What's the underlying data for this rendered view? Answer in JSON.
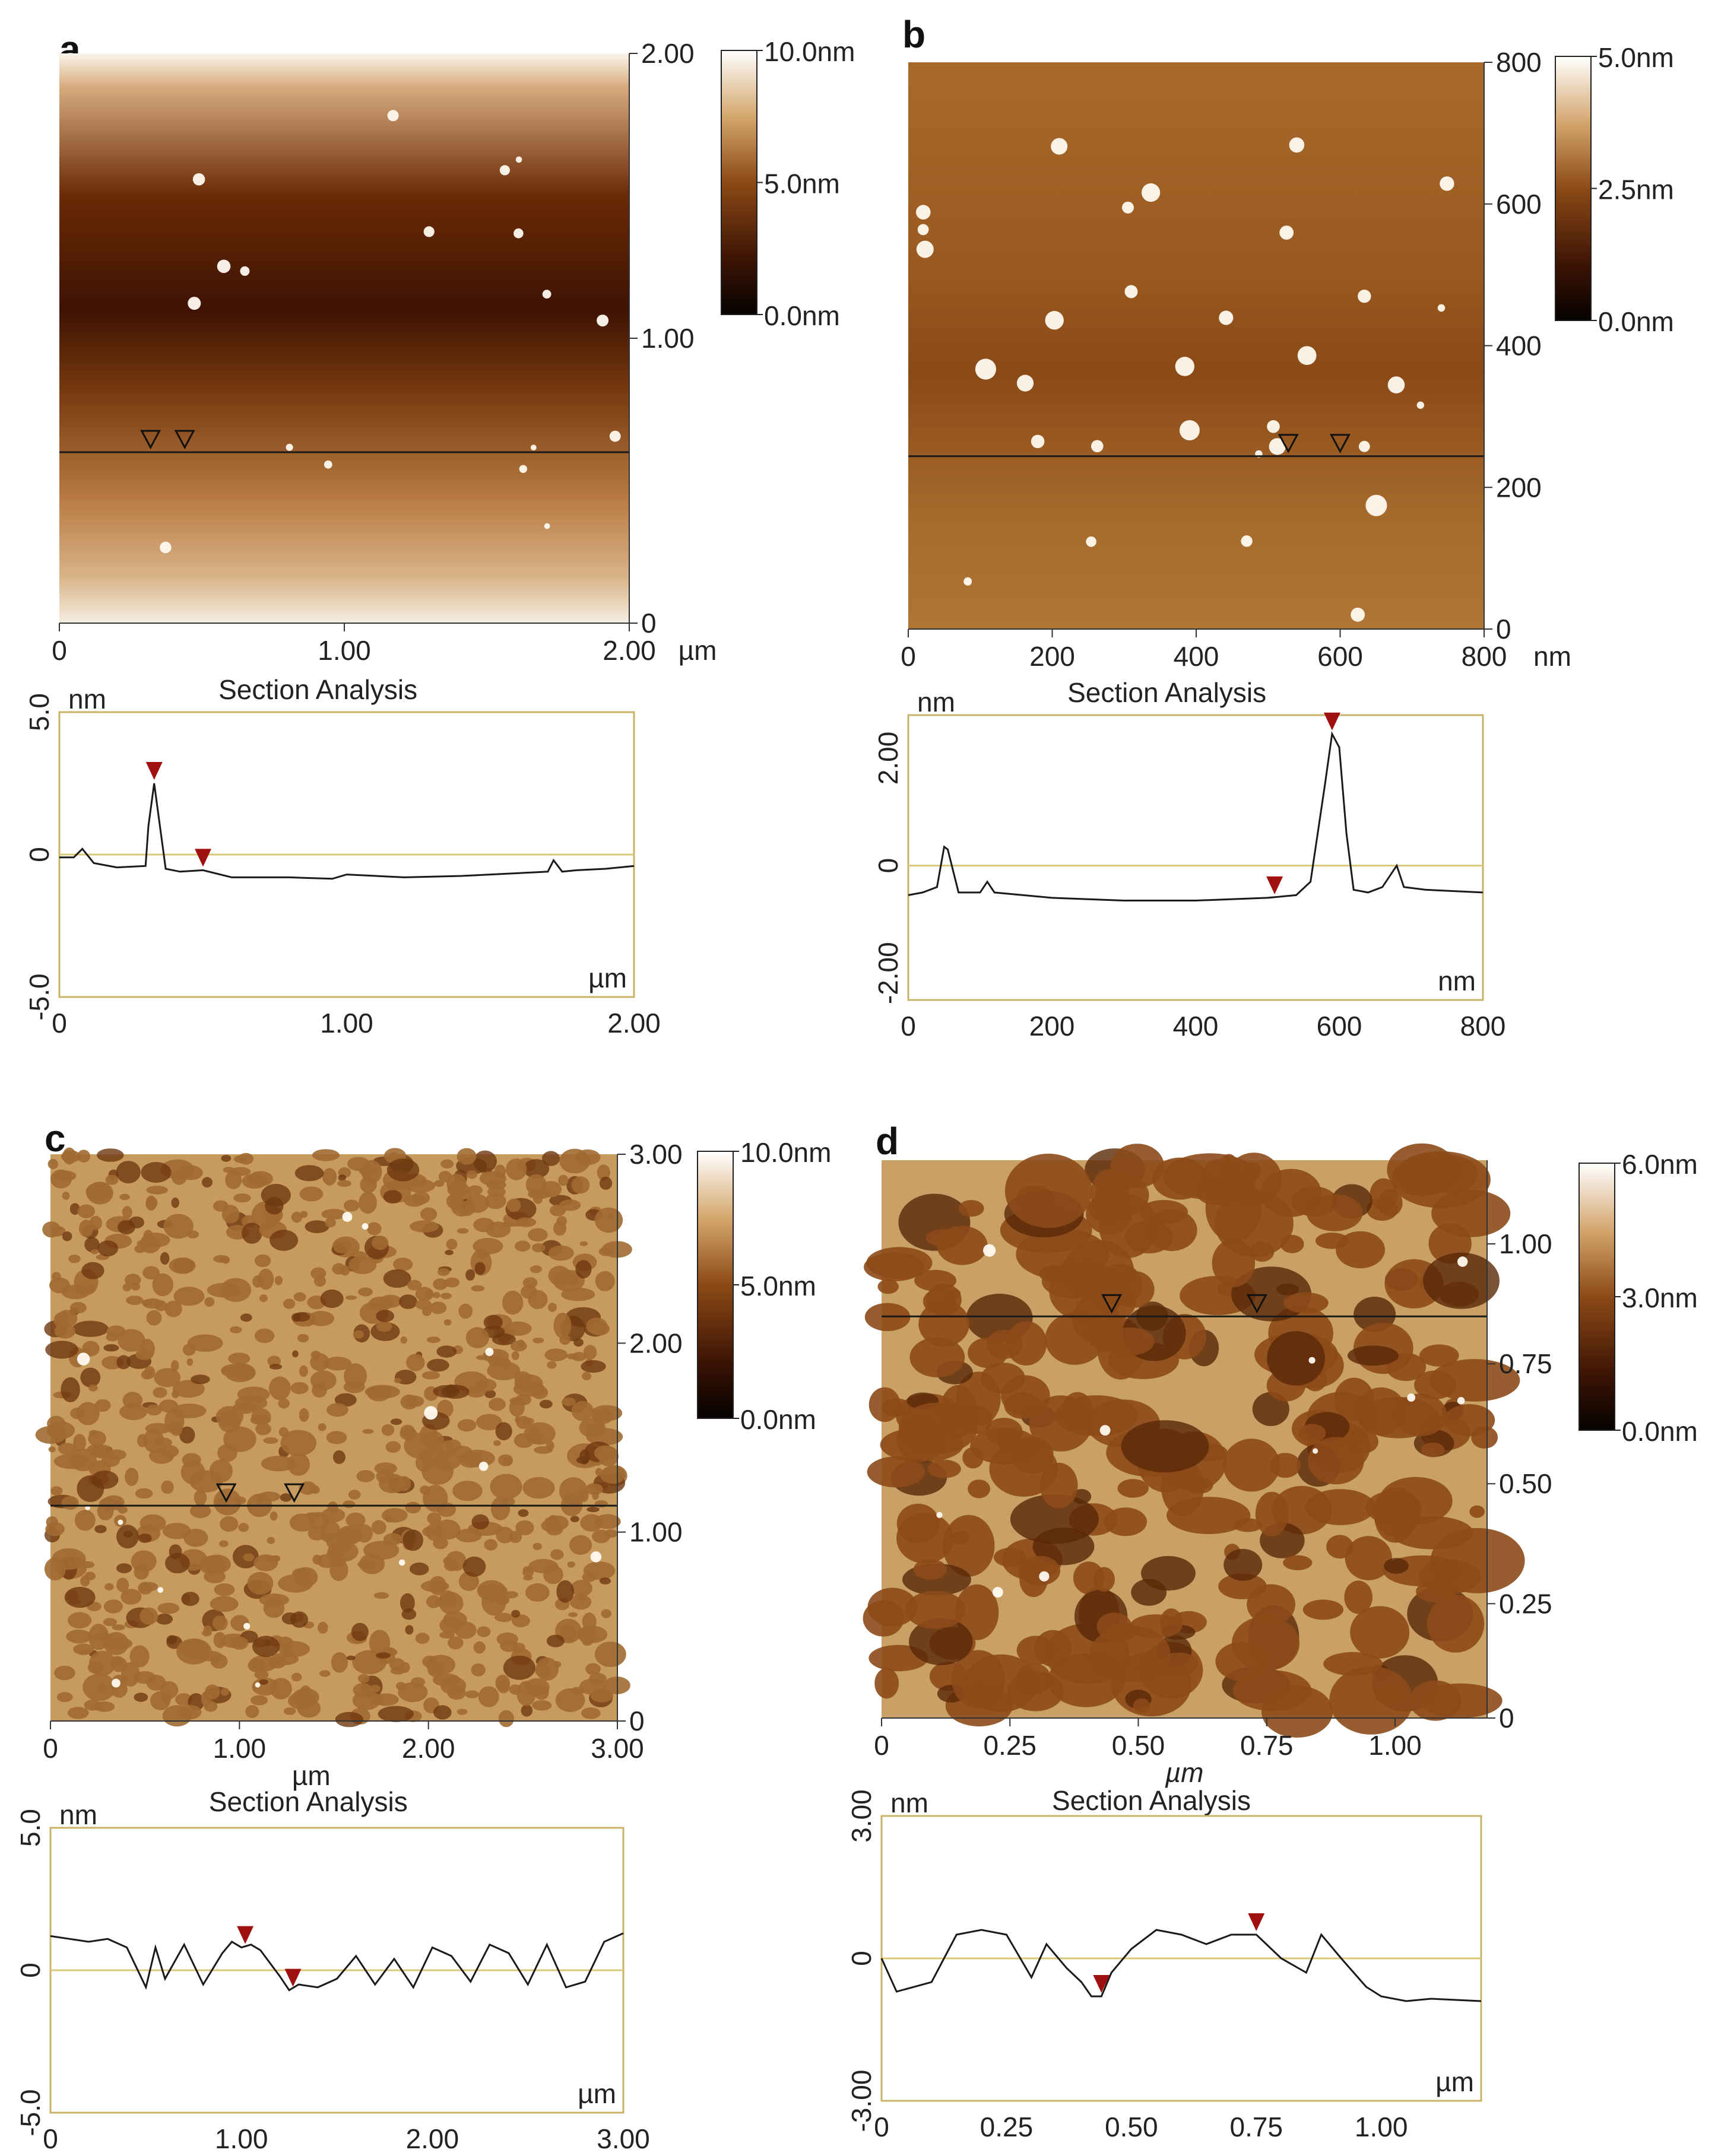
{
  "panels": [
    {
      "letter": "a",
      "image": {
        "type": "afm_height_map",
        "x_ticks": [
          "0",
          "1.00",
          "2.00"
        ],
        "x_unit": "µm",
        "y_ticks": [
          "2.00",
          "1.00",
          "0"
        ],
        "colorbar": {
          "labels": [
            "10.0nm",
            "5.0nm",
            "0.0nm"
          ]
        },
        "section_markers": 2,
        "palette": {
          "dark": "#3a0f02",
          "mid": "#9a5518",
          "light": "#fbf5ea"
        }
      },
      "section": {
        "title": "Section Analysis",
        "y_unit": "nm",
        "x_unit": "µm",
        "y_ticks": [
          "5.0",
          "0",
          "-5.0"
        ],
        "x_ticks": [
          "0",
          "1.00",
          "2.00"
        ]
      }
    },
    {
      "letter": "b",
      "image": {
        "type": "afm_height_map",
        "x_ticks": [
          "0",
          "200",
          "400",
          "600",
          "800"
        ],
        "x_unit": "nm",
        "y_ticks": [
          "800",
          "600",
          "400",
          "200",
          "0"
        ],
        "colorbar": {
          "labels": [
            "5.0nm",
            "2.5nm",
            "0.0nm"
          ]
        },
        "section_markers": 2,
        "palette": {
          "dark": "#5a2a08",
          "mid": "#a86a2c",
          "light": "#ffffff"
        }
      },
      "section": {
        "title": "Section Analysis",
        "y_unit": "nm",
        "x_unit": "nm",
        "y_ticks": [
          "2.00",
          "0",
          "-2.00"
        ],
        "x_ticks": [
          "0",
          "200",
          "400",
          "600",
          "800"
        ]
      }
    },
    {
      "letter": "c",
      "image": {
        "type": "afm_height_map",
        "x_ticks": [
          "0",
          "1.00",
          "2.00",
          "3.00"
        ],
        "x_unit": "µm",
        "y_ticks": [
          "3.00",
          "2.00",
          "1.00",
          "0"
        ],
        "colorbar": {
          "labels": [
            "10.0nm",
            "5.0nm",
            "0.0nm"
          ]
        },
        "section_markers": 2,
        "palette": {
          "dark": "#6e3810",
          "mid": "#a06a32",
          "light": "#c79a5e"
        }
      },
      "section": {
        "title": "Section Analysis",
        "y_unit": "nm",
        "x_unit": "µm",
        "y_ticks": [
          "5.0",
          "0",
          "-5.0"
        ],
        "x_ticks": [
          "0",
          "1.00",
          "2.00",
          "3.00"
        ]
      }
    },
    {
      "letter": "d",
      "image": {
        "type": "afm_height_map",
        "x_ticks": [
          "0",
          "0.25",
          "0.50",
          "0.75",
          "1.00"
        ],
        "x_unit": "µm",
        "y_ticks": [
          "1.00",
          "0.75",
          "0.50",
          "0.25",
          "0"
        ],
        "colorbar": {
          "labels": [
            "6.0nm",
            "3.0nm",
            "0.0nm"
          ]
        },
        "section_markers": 2,
        "palette": {
          "dark": "#5a2808",
          "mid": "#8c4a18",
          "light": "#c9a066"
        }
      },
      "section": {
        "title": "Section Analysis",
        "y_unit": "nm",
        "x_unit": "µm",
        "y_ticks": [
          "3.00",
          "0",
          "-3.00"
        ],
        "x_ticks": [
          "0",
          "0.25",
          "0.50",
          "0.75",
          "1.00"
        ]
      }
    }
  ],
  "chart_data": [
    {
      "type": "line",
      "panel": "a",
      "title": "Section Analysis",
      "xlabel": "µm",
      "ylabel": "nm",
      "xlim": [
        0,
        2.0
      ],
      "ylim": [
        -5,
        5
      ],
      "x": [
        0,
        0.05,
        0.08,
        0.12,
        0.2,
        0.3,
        0.31,
        0.33,
        0.35,
        0.37,
        0.42,
        0.5,
        0.6,
        0.8,
        0.95,
        1.0,
        1.2,
        1.4,
        1.6,
        1.7,
        1.72,
        1.75,
        1.8,
        1.9,
        2.0
      ],
      "y": [
        -0.1,
        -0.1,
        0.2,
        -0.3,
        -0.45,
        -0.4,
        1.0,
        2.5,
        1.0,
        -0.5,
        -0.6,
        -0.55,
        -0.8,
        -0.8,
        -0.85,
        -0.7,
        -0.8,
        -0.75,
        -0.65,
        -0.6,
        -0.2,
        -0.6,
        -0.55,
        -0.5,
        -0.4
      ]
    },
    {
      "type": "line",
      "panel": "b",
      "title": "Section Analysis",
      "xlabel": "nm",
      "ylabel": "nm",
      "xlim": [
        0,
        800
      ],
      "ylim": [
        -2.5,
        2.8
      ],
      "x": [
        0,
        20,
        40,
        50,
        55,
        70,
        100,
        110,
        120,
        200,
        300,
        400,
        500,
        540,
        560,
        580,
        590,
        600,
        610,
        620,
        640,
        660,
        680,
        690,
        720,
        800
      ],
      "y": [
        -0.55,
        -0.5,
        -0.4,
        0.35,
        0.3,
        -0.5,
        -0.5,
        -0.3,
        -0.5,
        -0.6,
        -0.65,
        -0.65,
        -0.6,
        -0.55,
        -0.3,
        1.5,
        2.45,
        2.2,
        0.6,
        -0.45,
        -0.5,
        -0.4,
        0.0,
        -0.4,
        -0.45,
        -0.5
      ]
    },
    {
      "type": "line",
      "panel": "c",
      "title": "Section Analysis",
      "xlabel": "µm",
      "ylabel": "nm",
      "xlim": [
        0,
        3.0
      ],
      "ylim": [
        -5,
        5
      ],
      "x": [
        0,
        0.1,
        0.2,
        0.3,
        0.4,
        0.5,
        0.55,
        0.6,
        0.7,
        0.8,
        0.9,
        0.95,
        1.0,
        1.05,
        1.1,
        1.2,
        1.25,
        1.3,
        1.4,
        1.5,
        1.6,
        1.7,
        1.8,
        1.9,
        2.0,
        2.1,
        2.2,
        2.3,
        2.4,
        2.5,
        2.6,
        2.7,
        2.8,
        2.9,
        3.0
      ],
      "y": [
        1.2,
        1.1,
        1.0,
        1.1,
        0.8,
        -0.6,
        0.8,
        -0.3,
        0.9,
        -0.5,
        0.6,
        1.0,
        0.8,
        0.9,
        0.7,
        -0.2,
        -0.7,
        -0.5,
        -0.6,
        -0.3,
        0.5,
        -0.5,
        0.4,
        -0.6,
        0.8,
        0.5,
        -0.4,
        0.9,
        0.6,
        -0.5,
        0.9,
        -0.6,
        -0.4,
        1.0,
        1.3
      ]
    },
    {
      "type": "line",
      "panel": "d",
      "title": "Section Analysis",
      "xlabel": "µm",
      "ylabel": "nm",
      "xlim": [
        0,
        1.2
      ],
      "ylim": [
        -3,
        3
      ],
      "x": [
        0,
        0.03,
        0.1,
        0.15,
        0.2,
        0.25,
        0.3,
        0.33,
        0.37,
        0.4,
        0.42,
        0.44,
        0.46,
        0.5,
        0.55,
        0.6,
        0.65,
        0.7,
        0.75,
        0.8,
        0.85,
        0.88,
        0.92,
        0.97,
        1.0,
        1.05,
        1.1,
        1.2
      ],
      "y": [
        0.0,
        -0.7,
        -0.5,
        0.5,
        0.6,
        0.5,
        -0.4,
        0.3,
        -0.2,
        -0.5,
        -0.8,
        -0.8,
        -0.3,
        0.2,
        0.6,
        0.5,
        0.3,
        0.5,
        0.5,
        0.0,
        -0.3,
        0.5,
        0.0,
        -0.6,
        -0.8,
        -0.9,
        -0.85,
        -0.9
      ]
    }
  ]
}
